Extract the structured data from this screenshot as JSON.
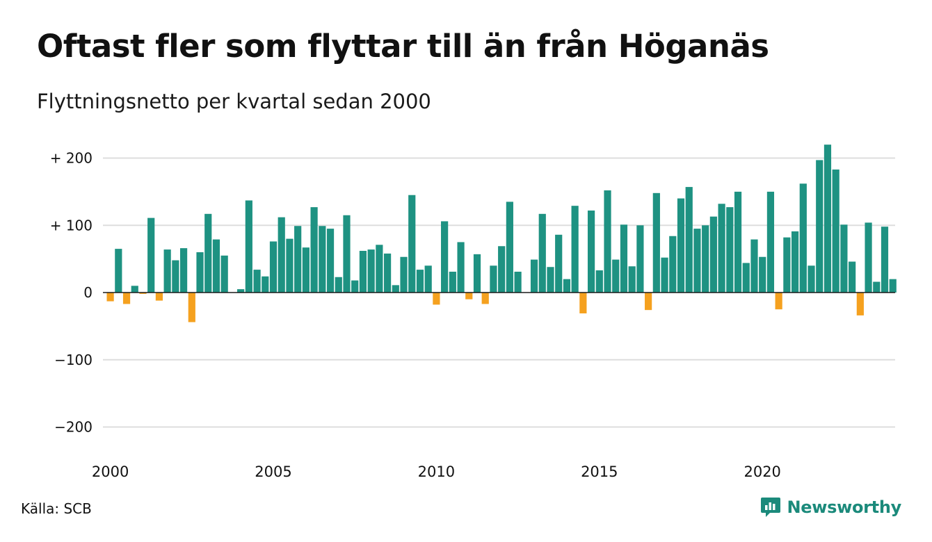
{
  "header": {
    "title": "Oftast fler som flyttar till än från Höganäs",
    "subtitle": "Flyttningsnetto per kvartal sedan 2000"
  },
  "footer": {
    "source": "Källa: SCB",
    "brand": "Newsworthy"
  },
  "colors": {
    "positive": "#1e9282",
    "negative": "#f5a11f",
    "grid": "#dddddd",
    "brand": "#1b8a7b"
  },
  "chart_data": {
    "type": "bar",
    "title": "Oftast fler som flyttar till än från Höganäs",
    "subtitle": "Flyttningsnetto per kvartal sedan 2000",
    "ylim": [
      -220,
      220
    ],
    "yticks": [
      200,
      100,
      0,
      -100,
      -200
    ],
    "ytick_labels": [
      "+ 200",
      "+ 100",
      "0",
      "−100",
      "−200"
    ],
    "xticks": [
      "2000",
      "2005",
      "2010",
      "2015",
      "2020"
    ],
    "grid": true,
    "series": [
      {
        "start_year": 2000,
        "values": [
          -13,
          65,
          -17,
          10,
          -2,
          111,
          -12,
          64,
          48,
          66,
          -44,
          60,
          117,
          79,
          55,
          0,
          5,
          137,
          34,
          24,
          76,
          112,
          80,
          99,
          67,
          127,
          99,
          95,
          23,
          115,
          18,
          62,
          64,
          71,
          58,
          11,
          53,
          145,
          34,
          40,
          -18,
          106,
          31,
          75,
          -10,
          57,
          -17,
          40,
          69,
          135,
          31,
          0,
          49,
          117,
          38,
          86,
          20,
          129,
          -31,
          122,
          33,
          152,
          49,
          101,
          39,
          100,
          -26,
          148,
          52,
          84,
          140,
          157,
          95,
          100,
          113,
          132,
          127,
          150,
          44,
          79,
          53,
          150,
          -25,
          82,
          91,
          162,
          40,
          197,
          220,
          183,
          101,
          46,
          -34,
          104,
          16,
          98,
          20
        ]
      }
    ]
  }
}
